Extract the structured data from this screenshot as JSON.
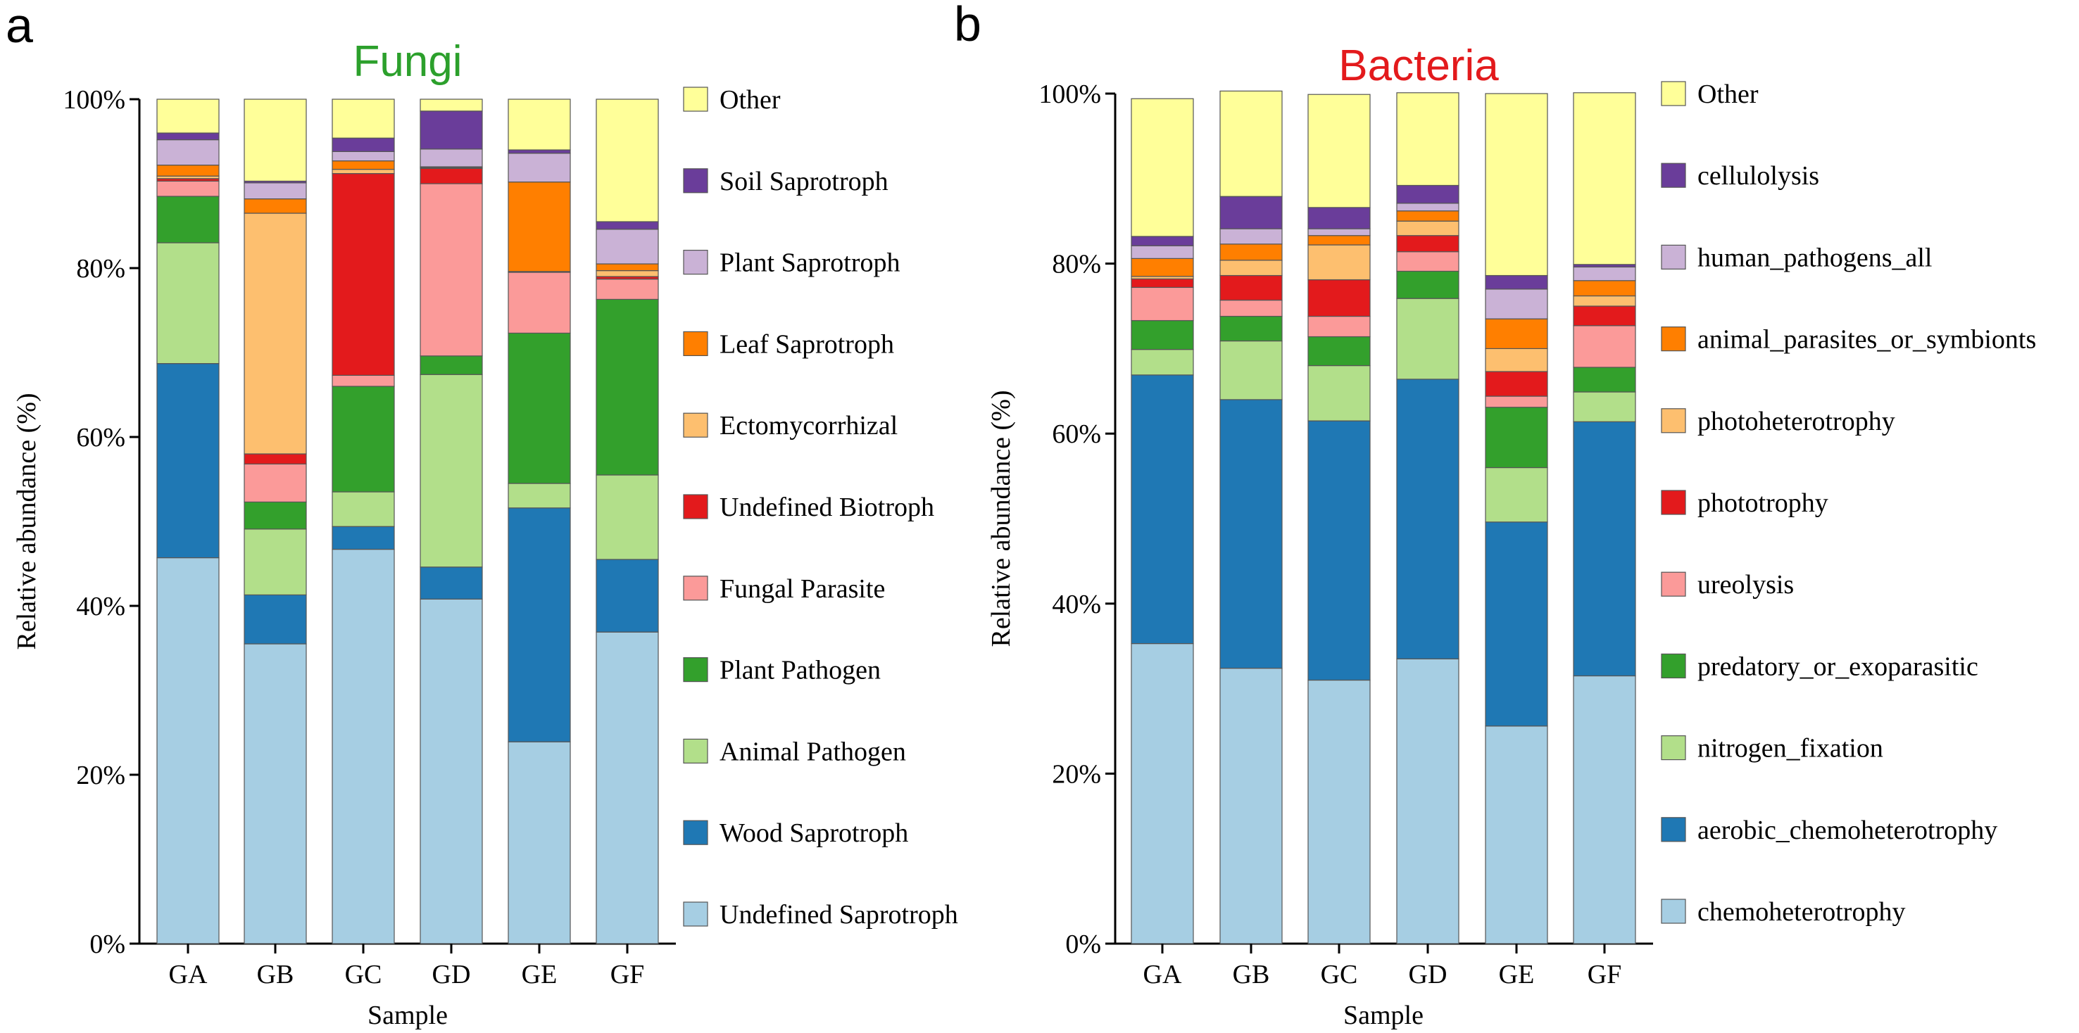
{
  "chart_data": [
    {
      "type": "bar",
      "stacked": true,
      "panel_label": "a",
      "title": "Fungi",
      "title_color": "#2ca02c",
      "xlabel": "Sample",
      "ylabel": "Relative abundance (%)",
      "ylim": [
        0,
        100
      ],
      "yticks": [
        "0%",
        "20%",
        "40%",
        "60%",
        "80%",
        "100%"
      ],
      "categories": [
        "GA",
        "GB",
        "GC",
        "GD",
        "GE",
        "GF"
      ],
      "series": [
        {
          "name": "Undefined Saprotroph",
          "color": "#a6cee3",
          "values": [
            45.7,
            35.5,
            46.7,
            40.8,
            23.9,
            36.9
          ]
        },
        {
          "name": "Wood Saprotroph",
          "color": "#1f78b4",
          "values": [
            23.0,
            5.8,
            2.7,
            3.8,
            27.7,
            8.6
          ]
        },
        {
          "name": "Animal Pathogen",
          "color": "#b2df8a",
          "values": [
            14.3,
            7.8,
            4.1,
            22.8,
            2.9,
            10.0
          ]
        },
        {
          "name": "Plant Pathogen",
          "color": "#33a02c",
          "values": [
            5.5,
            3.2,
            12.5,
            2.2,
            17.8,
            20.8
          ]
        },
        {
          "name": "Fungal Parasite",
          "color": "#fb9a99",
          "values": [
            1.8,
            4.5,
            1.3,
            20.4,
            7.2,
            2.4
          ]
        },
        {
          "name": "Undefined Biotroph",
          "color": "#e31a1c",
          "values": [
            0.3,
            1.2,
            23.9,
            1.8,
            0.0,
            0.3
          ]
        },
        {
          "name": "Ectomycorrhizal",
          "color": "#fdbf6f",
          "values": [
            0.3,
            28.5,
            0.5,
            0.1,
            0.1,
            0.7
          ]
        },
        {
          "name": "Leaf Saprotroph",
          "color": "#ff7f00",
          "values": [
            1.3,
            1.7,
            1.0,
            0.1,
            10.6,
            0.8
          ]
        },
        {
          "name": "Plant Saprotroph",
          "color": "#cab2d6",
          "values": [
            3.0,
            1.9,
            1.1,
            2.1,
            3.4,
            4.1
          ]
        },
        {
          "name": "Soil Saprotroph",
          "color": "#6a3d9a",
          "values": [
            0.8,
            0.2,
            1.6,
            4.5,
            0.4,
            0.9
          ]
        },
        {
          "name": "Other",
          "color": "#ffff99",
          "values": [
            4.0,
            9.7,
            4.6,
            1.4,
            6.0,
            14.5
          ]
        }
      ]
    },
    {
      "type": "bar",
      "stacked": true,
      "panel_label": "b",
      "title": "Bacteria",
      "title_color": "#e31a1c",
      "xlabel": "Sample",
      "ylabel": "Relative abundance (%)",
      "ylim": [
        0,
        100
      ],
      "yticks": [
        "0%",
        "20%",
        "40%",
        "60%",
        "80%",
        "100%"
      ],
      "categories": [
        "GA",
        "GB",
        "GC",
        "GD",
        "GE",
        "GF"
      ],
      "series": [
        {
          "name": "chemoheterotrophy",
          "color": "#a6cee3",
          "values": [
            35.3,
            32.4,
            31.0,
            33.5,
            25.6,
            31.5
          ]
        },
        {
          "name": "aerobic_chemoheterotrophy",
          "color": "#1f78b4",
          "values": [
            31.6,
            31.6,
            30.5,
            32.9,
            24.0,
            29.9
          ]
        },
        {
          "name": "nitrogen_fixation",
          "color": "#b2df8a",
          "values": [
            3.0,
            6.9,
            6.5,
            9.5,
            6.4,
            3.5
          ]
        },
        {
          "name": "predatory_or_exoparasitic",
          "color": "#33a02c",
          "values": [
            3.4,
            2.9,
            3.4,
            3.2,
            7.1,
            2.9
          ]
        },
        {
          "name": "ureolysis",
          "color": "#fb9a99",
          "values": [
            3.9,
            1.9,
            2.4,
            2.3,
            1.3,
            4.9
          ]
        },
        {
          "name": "phototrophy",
          "color": "#e31a1c",
          "values": [
            1.0,
            2.9,
            4.3,
            1.9,
            2.9,
            2.3
          ]
        },
        {
          "name": "photoheterotrophy",
          "color": "#fdbf6f",
          "values": [
            0.3,
            1.8,
            4.1,
            1.7,
            2.7,
            1.2
          ]
        },
        {
          "name": "animal_parasites_or_symbionts",
          "color": "#ff7f00",
          "values": [
            2.1,
            1.9,
            1.1,
            1.2,
            3.5,
            1.8
          ]
        },
        {
          "name": "human_pathogens_all",
          "color": "#cab2d6",
          "values": [
            1.5,
            1.8,
            0.8,
            0.9,
            3.5,
            1.6
          ]
        },
        {
          "name": "cellulolysis",
          "color": "#6a3d9a",
          "values": [
            1.1,
            3.8,
            2.5,
            2.1,
            1.6,
            0.3
          ]
        },
        {
          "name": "Other",
          "color": "#ffff99",
          "values": [
            16.2,
            12.4,
            13.3,
            10.9,
            21.4,
            20.2
          ]
        }
      ]
    }
  ]
}
